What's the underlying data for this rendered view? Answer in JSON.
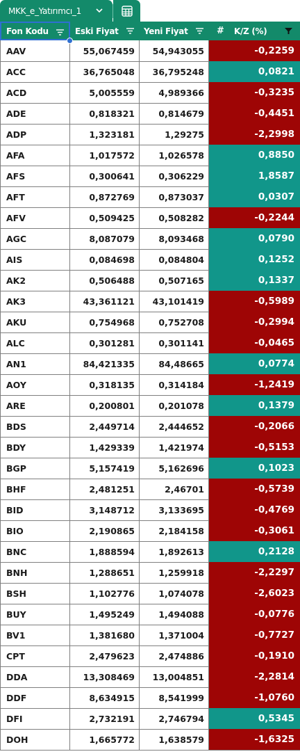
{
  "sheet_tab": {
    "name": "MKK_e_Yatırımcı_1"
  },
  "header": {
    "col_code": "Fon Kodu",
    "col_old": "Eski Fiyat",
    "col_new": "Yeni Fiyat",
    "col_kz": "K/Z (%)"
  },
  "colors": {
    "header_bg": "#138a6a",
    "negative": "#9e0505",
    "positive": "#11968a",
    "selection": "#2f6fd1"
  },
  "rows": [
    {
      "code": "AAV",
      "old": "55,067459",
      "new": "54,943055",
      "kz": "-0,2259",
      "sign": "neg"
    },
    {
      "code": "ACC",
      "old": "36,765048",
      "new": "36,795248",
      "kz": "0,0821",
      "sign": "pos"
    },
    {
      "code": "ACD",
      "old": "5,005559",
      "new": "4,989366",
      "kz": "-0,3235",
      "sign": "neg"
    },
    {
      "code": "ADE",
      "old": "0,818321",
      "new": "0,814679",
      "kz": "-0,4451",
      "sign": "neg"
    },
    {
      "code": "ADP",
      "old": "1,323181",
      "new": "1,29275",
      "kz": "-2,2998",
      "sign": "neg"
    },
    {
      "code": "AFA",
      "old": "1,017572",
      "new": "1,026578",
      "kz": "0,8850",
      "sign": "pos"
    },
    {
      "code": "AFS",
      "old": "0,300641",
      "new": "0,306229",
      "kz": "1,8587",
      "sign": "pos"
    },
    {
      "code": "AFT",
      "old": "0,872769",
      "new": "0,873037",
      "kz": "0,0307",
      "sign": "pos"
    },
    {
      "code": "AFV",
      "old": "0,509425",
      "new": "0,508282",
      "kz": "-0,2244",
      "sign": "neg"
    },
    {
      "code": "AGC",
      "old": "8,087079",
      "new": "8,093468",
      "kz": "0,0790",
      "sign": "pos"
    },
    {
      "code": "AIS",
      "old": "0,084698",
      "new": "0,084804",
      "kz": "0,1252",
      "sign": "pos"
    },
    {
      "code": "AK2",
      "old": "0,506488",
      "new": "0,507165",
      "kz": "0,1337",
      "sign": "pos"
    },
    {
      "code": "AK3",
      "old": "43,361121",
      "new": "43,101419",
      "kz": "-0,5989",
      "sign": "neg"
    },
    {
      "code": "AKU",
      "old": "0,754968",
      "new": "0,752708",
      "kz": "-0,2994",
      "sign": "neg"
    },
    {
      "code": "ALC",
      "old": "0,301281",
      "new": "0,301141",
      "kz": "-0,0465",
      "sign": "neg"
    },
    {
      "code": "AN1",
      "old": "84,421335",
      "new": "84,48665",
      "kz": "0,0774",
      "sign": "pos"
    },
    {
      "code": "AOY",
      "old": "0,318135",
      "new": "0,314184",
      "kz": "-1,2419",
      "sign": "neg"
    },
    {
      "code": "ARE",
      "old": "0,200801",
      "new": "0,201078",
      "kz": "0,1379",
      "sign": "pos"
    },
    {
      "code": "BDS",
      "old": "2,449714",
      "new": "2,444652",
      "kz": "-0,2066",
      "sign": "neg"
    },
    {
      "code": "BDY",
      "old": "1,429339",
      "new": "1,421974",
      "kz": "-0,5153",
      "sign": "neg"
    },
    {
      "code": "BGP",
      "old": "5,157419",
      "new": "5,162696",
      "kz": "0,1023",
      "sign": "pos"
    },
    {
      "code": "BHF",
      "old": "2,481251",
      "new": "2,46701",
      "kz": "-0,5739",
      "sign": "neg"
    },
    {
      "code": "BID",
      "old": "3,148712",
      "new": "3,133695",
      "kz": "-0,4769",
      "sign": "neg"
    },
    {
      "code": "BIO",
      "old": "2,190865",
      "new": "2,184158",
      "kz": "-0,3061",
      "sign": "neg"
    },
    {
      "code": "BNC",
      "old": "1,888594",
      "new": "1,892613",
      "kz": "0,2128",
      "sign": "pos"
    },
    {
      "code": "BNH",
      "old": "1,288651",
      "new": "1,259918",
      "kz": "-2,2297",
      "sign": "neg"
    },
    {
      "code": "BSH",
      "old": "1,102776",
      "new": "1,074078",
      "kz": "-2,6023",
      "sign": "neg"
    },
    {
      "code": "BUY",
      "old": "1,495249",
      "new": "1,494088",
      "kz": "-0,0776",
      "sign": "neg"
    },
    {
      "code": "BV1",
      "old": "1,381680",
      "new": "1,371004",
      "kz": "-0,7727",
      "sign": "neg"
    },
    {
      "code": "CPT",
      "old": "2,479623",
      "new": "2,474886",
      "kz": "-0,1910",
      "sign": "neg"
    },
    {
      "code": "DDA",
      "old": "13,308469",
      "new": "13,004851",
      "kz": "-2,2814",
      "sign": "neg"
    },
    {
      "code": "DDF",
      "old": "8,634915",
      "new": "8,541999",
      "kz": "-1,0760",
      "sign": "neg"
    },
    {
      "code": "DFI",
      "old": "2,732191",
      "new": "2,746794",
      "kz": "0,5345",
      "sign": "pos"
    },
    {
      "code": "DOH",
      "old": "1,665772",
      "new": "1,638579",
      "kz": "-1,6325",
      "sign": "neg"
    }
  ]
}
